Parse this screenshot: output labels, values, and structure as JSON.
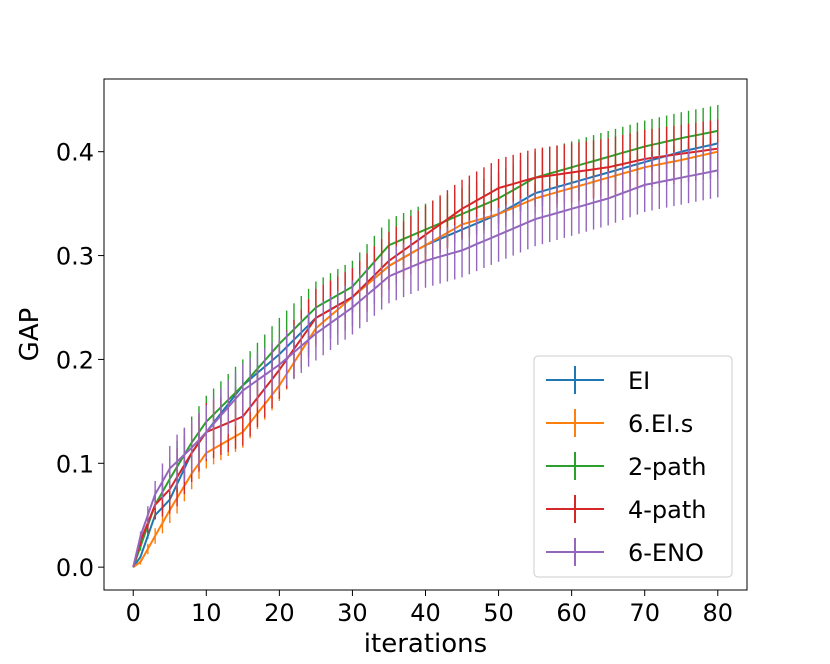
{
  "chart_data": {
    "type": "line",
    "title": "",
    "xlabel": "iterations",
    "ylabel": "GAP",
    "xlim": [
      -4,
      84
    ],
    "ylim": [
      -0.022,
      0.47
    ],
    "xticks": [
      0,
      10,
      20,
      30,
      40,
      50,
      60,
      70,
      80
    ],
    "xtick_labels": [
      "0",
      "10",
      "20",
      "30",
      "40",
      "50",
      "60",
      "70",
      "80"
    ],
    "yticks": [
      0.0,
      0.1,
      0.2,
      0.3,
      0.4
    ],
    "ytick_labels": [
      "0.0",
      "0.1",
      "0.2",
      "0.3",
      "0.4"
    ],
    "grid": false,
    "legend_position": "lower-right",
    "error_bars": true,
    "anchor_x": [
      0,
      1,
      3,
      5,
      8,
      10,
      15,
      20,
      25,
      30,
      35,
      40,
      45,
      50,
      55,
      60,
      65,
      70,
      75,
      80
    ],
    "series": [
      {
        "name": "EI",
        "color": "#1f77b4",
        "anchor_values": [
          0.0,
          0.01,
          0.05,
          0.065,
          0.11,
          0.13,
          0.175,
          0.205,
          0.24,
          0.26,
          0.29,
          0.31,
          0.325,
          0.34,
          0.36,
          0.37,
          0.38,
          0.39,
          0.4,
          0.408
        ],
        "error": 0.008
      },
      {
        "name": "6.EI.s",
        "color": "#ff7f0e",
        "anchor_values": [
          0.0,
          0.005,
          0.03,
          0.055,
          0.09,
          0.11,
          0.13,
          0.175,
          0.23,
          0.26,
          0.29,
          0.31,
          0.33,
          0.34,
          0.355,
          0.365,
          0.375,
          0.385,
          0.392,
          0.4
        ],
        "error": 0.015
      },
      {
        "name": "2-path",
        "color": "#2ca02c",
        "anchor_values": [
          0.0,
          0.02,
          0.06,
          0.085,
          0.12,
          0.14,
          0.175,
          0.215,
          0.25,
          0.27,
          0.31,
          0.325,
          0.34,
          0.355,
          0.375,
          0.385,
          0.395,
          0.405,
          0.413,
          0.42
        ],
        "error": 0.025
      },
      {
        "name": "4-path",
        "color": "#d62728",
        "anchor_values": [
          0.0,
          0.025,
          0.06,
          0.075,
          0.11,
          0.13,
          0.145,
          0.19,
          0.24,
          0.26,
          0.295,
          0.32,
          0.345,
          0.365,
          0.375,
          0.38,
          0.385,
          0.393,
          0.398,
          0.403
        ],
        "error": 0.028
      },
      {
        "name": "6-ENO",
        "color": "#9467bd",
        "anchor_values": [
          0.0,
          0.03,
          0.07,
          0.095,
          0.115,
          0.13,
          0.17,
          0.195,
          0.225,
          0.25,
          0.28,
          0.295,
          0.305,
          0.32,
          0.335,
          0.345,
          0.355,
          0.368,
          0.375,
          0.382
        ],
        "error": 0.026
      }
    ]
  }
}
